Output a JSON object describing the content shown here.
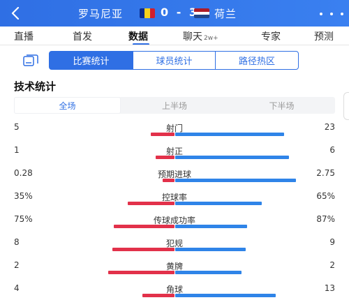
{
  "header": {
    "home_team": "罗马尼亚",
    "away_team": "荷兰",
    "score": "0 - 3",
    "colors": {
      "bar_bg": "#2f6fe4",
      "home_flag": [
        "#0a2c8c",
        "#f7d21c",
        "#d11f2e"
      ],
      "away_flag": [
        "#ae1c28",
        "#ffffff",
        "#21468b"
      ]
    }
  },
  "nav": {
    "tabs": [
      {
        "label": "直播"
      },
      {
        "label": "首发"
      },
      {
        "label": "数据"
      },
      {
        "label": "聊天",
        "sup": "2w+"
      },
      {
        "label": "专家"
      },
      {
        "label": "预测"
      }
    ],
    "active": "数据"
  },
  "subtabs": [
    "比赛统计",
    "球员统计",
    "路径热区"
  ],
  "section": {
    "title": "技术统计",
    "periods": [
      "全场",
      "上半场",
      "下半场"
    ]
  },
  "stats": [
    {
      "label": "射门",
      "home": "5",
      "away": "23",
      "home_ratio": 0.18,
      "away_ratio": 0.82
    },
    {
      "label": "射正",
      "home": "1",
      "away": "6",
      "home_ratio": 0.14,
      "away_ratio": 0.86
    },
    {
      "label": "预期进球",
      "home": "0.28",
      "away": "2.75",
      "home_ratio": 0.09,
      "away_ratio": 0.91
    },
    {
      "label": "控球率",
      "home": "35%",
      "away": "65%",
      "home_ratio": 0.35,
      "away_ratio": 0.65
    },
    {
      "label": "传球成功率",
      "home": "75%",
      "away": "87%",
      "home_ratio": 0.46,
      "away_ratio": 0.54
    },
    {
      "label": "犯规",
      "home": "8",
      "away": "9",
      "home_ratio": 0.47,
      "away_ratio": 0.53
    },
    {
      "label": "黄牌",
      "home": "2",
      "away": "2",
      "home_ratio": 0.5,
      "away_ratio": 0.5
    },
    {
      "label": "角球",
      "home": "4",
      "away": "13",
      "home_ratio": 0.24,
      "away_ratio": 0.76
    }
  ],
  "icons": {
    "back": "back-arrow-icon",
    "more": "more-dots-icon",
    "stats_tab": "stats-chart-icon"
  }
}
